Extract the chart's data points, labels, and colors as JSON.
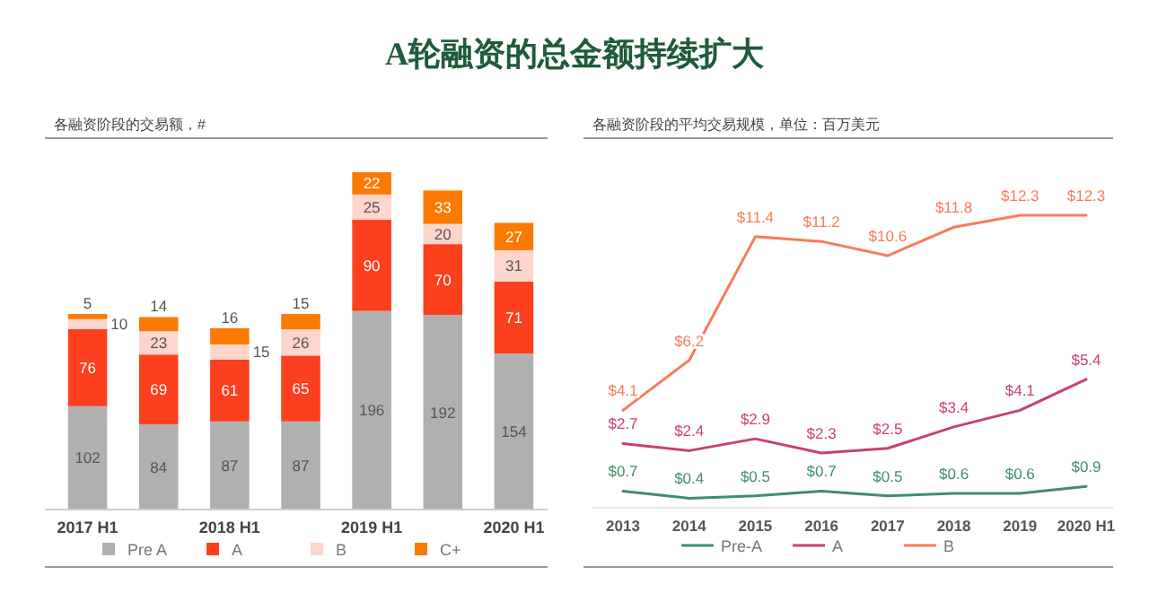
{
  "chart_data": [
    {
      "type": "bar",
      "title": "A轮融资的总金额持续扩大",
      "subtitle": "各融资阶段的交易额，#",
      "stacked": true,
      "data_labels": true,
      "legend": "bottom",
      "categories": [
        "2017 H1",
        null,
        "2018 H1",
        null,
        "2019 H1",
        null,
        "2020 H1"
      ],
      "series": [
        {
          "name": "Pre A",
          "color": "#b0b0b0",
          "values": [
            102,
            84,
            87,
            87,
            196,
            192,
            154
          ]
        },
        {
          "name": "A",
          "color": "#fc3f1d",
          "values": [
            76,
            69,
            61,
            65,
            90,
            70,
            71
          ]
        },
        {
          "name": "B",
          "color": "#fdd5cc",
          "values": [
            10,
            23,
            15,
            26,
            25,
            20,
            31
          ]
        },
        {
          "name": "C+",
          "color": "#fc7a00",
          "values": [
            5,
            14,
            16,
            15,
            22,
            33,
            27
          ]
        }
      ]
    },
    {
      "type": "line",
      "subtitle": "各融资阶段的平均交易规模，单位：百万美元",
      "data_labels": true,
      "legend": "bottom",
      "marker": "none",
      "categories": [
        "2013",
        "2014",
        "2015",
        "2016",
        "2017",
        "2018",
        "2019",
        "2020 H1"
      ],
      "series": [
        {
          "name": "Pre-A",
          "color": "#3f8f6a",
          "values": [
            0.7,
            0.4,
            0.5,
            0.7,
            0.5,
            0.6,
            0.6,
            0.9
          ],
          "value_labels": [
            "$0.7",
            "$0.4",
            "$0.5",
            "$0.7",
            "$0.5",
            "$0.6",
            "$0.6",
            "$0.9"
          ]
        },
        {
          "name": "A",
          "color": "#c8416b",
          "values": [
            2.7,
            2.4,
            2.9,
            2.3,
            2.5,
            3.4,
            4.1,
            5.4
          ],
          "value_labels": [
            "$2.7",
            "$2.4",
            "$2.9",
            "$2.3",
            "$2.5",
            "$3.4",
            "$4.1",
            "$5.4"
          ]
        },
        {
          "name": "B",
          "color": "#fb7a5a",
          "values": [
            4.1,
            6.2,
            11.4,
            11.2,
            10.6,
            11.8,
            12.3,
            12.3
          ],
          "value_labels": [
            "$4.1",
            "$6.2",
            "$11.4",
            "$11.2",
            "$10.6",
            "$11.8",
            "$12.3",
            "$12.3"
          ]
        }
      ]
    }
  ]
}
